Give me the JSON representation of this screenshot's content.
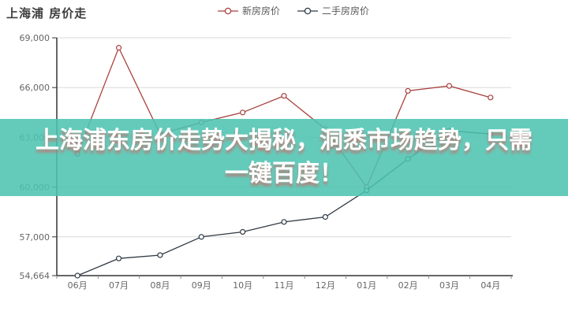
{
  "header": {
    "title": "上海浦 房价走"
  },
  "banner": {
    "line1": "上海浦东房价走势大揭秘，洞悉市场趋势，只需",
    "line2": "一键百度！",
    "bg_color": "rgba(77,195,177,0.87)",
    "text_color": "#ffffff",
    "shadow_color": "rgba(222,90,88,0.65)"
  },
  "chart_data": {
    "type": "line",
    "title": "上海浦 房价走",
    "categories": [
      "06月",
      "07月",
      "08月",
      "09月",
      "10月",
      "11月",
      "12月",
      "01月",
      "02月",
      "03月",
      "04月"
    ],
    "series": [
      {
        "name": "新房房价",
        "color": "#a8423e",
        "values": [
          62000,
          68400,
          63200,
          63900,
          64500,
          65500,
          63500,
          60000,
          65800,
          66100,
          65400
        ]
      },
      {
        "name": "二手房房价",
        "color": "#2f3a44",
        "values": [
          54664,
          55700,
          55900,
          57000,
          57300,
          57900,
          58200,
          59800,
          61700,
          63400,
          63200
        ]
      }
    ],
    "ylim": [
      54664,
      69000
    ],
    "y_ticks": [
      69000,
      66000,
      63000,
      60000,
      57000,
      54664
    ],
    "y_tick_labels": [
      "69,000",
      "66,000",
      "63,000",
      "60,000",
      "57,000",
      "54,664"
    ],
    "xlabel": "",
    "ylabel": "",
    "grid": true,
    "legend_position": "top-center",
    "grid_color": "#d9d9d9",
    "axis_color": "#333333",
    "tick_label_color": "#666666",
    "marker": "open-circle"
  }
}
